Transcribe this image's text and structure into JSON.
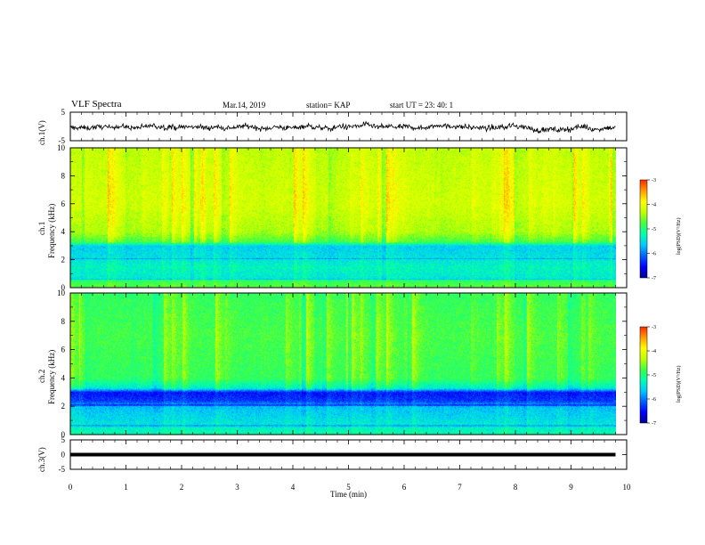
{
  "header": {
    "title": "VLF Spectra",
    "date": "Mar.14, 2019",
    "station": "station= KAP",
    "start": "start  UT =   23: 40: 1"
  },
  "labels": {
    "ch1_waveform": "ch.1(V)",
    "ch1_spec_line1": "ch.1",
    "ch1_spec_line2": "Frequency (kHz)",
    "ch2_spec_line1": "ch.2",
    "ch2_spec_line2": "Frequency (kHz)",
    "ch3_waveform": "ch.3(V)",
    "colorbar_title_1": "log(PSD)(V²/Hz)",
    "colorbar_title_2": "log(PSD)(V²/Hz)"
  },
  "chart_data": [
    {
      "type": "line",
      "name": "ch1-waveform",
      "ylabel": "ch.1(V)",
      "ylim": [
        -5,
        5
      ],
      "yticks": [
        "5",
        "-5"
      ],
      "xlim": [
        0,
        10
      ],
      "x_extent_min": 9.8,
      "level": -0.5,
      "amplitude": 2.0
    },
    {
      "type": "heatmap",
      "name": "ch1-spectrogram",
      "xlabel": "Time (min)",
      "ylabel": "Frequency (kHz)",
      "xlim": [
        0,
        10
      ],
      "ylim": [
        0,
        10
      ],
      "yticks": [
        "0",
        "2",
        "4",
        "6",
        "8",
        "10"
      ],
      "x_extent_min": 9.8,
      "profile": [
        {
          "f": 0.0,
          "v": -4.7
        },
        {
          "f": 0.5,
          "v": -4.9
        },
        {
          "f": 0.7,
          "v": -5.4
        },
        {
          "f": 1.5,
          "v": -5.3
        },
        {
          "f": 2.3,
          "v": -5.5
        },
        {
          "f": 3.0,
          "v": -5.6
        },
        {
          "f": 3.3,
          "v": -4.8
        },
        {
          "f": 4.0,
          "v": -4.4
        },
        {
          "f": 6.0,
          "v": -4.2
        },
        {
          "f": 10.0,
          "v": -4.3
        }
      ],
      "colorbar": {
        "label": "log(PSD)(V²/Hz)",
        "range": [
          -7,
          -3
        ],
        "ticks": [
          "-3",
          "-4",
          "-5",
          "-6",
          "-7"
        ]
      }
    },
    {
      "type": "heatmap",
      "name": "ch2-spectrogram",
      "xlabel": "Time (min)",
      "ylabel": "Frequency (kHz)",
      "xlim": [
        0,
        10
      ],
      "ylim": [
        0,
        10
      ],
      "yticks": [
        "0",
        "2",
        "4",
        "6",
        "8",
        "10"
      ],
      "x_extent_min": 9.8,
      "profile": [
        {
          "f": 0.0,
          "v": -5.2
        },
        {
          "f": 1.0,
          "v": -5.5
        },
        {
          "f": 2.0,
          "v": -5.7
        },
        {
          "f": 2.4,
          "v": -6.3
        },
        {
          "f": 3.0,
          "v": -6.5
        },
        {
          "f": 3.3,
          "v": -5.4
        },
        {
          "f": 4.0,
          "v": -4.9
        },
        {
          "f": 7.0,
          "v": -4.8
        },
        {
          "f": 10.0,
          "v": -4.9
        }
      ],
      "colorbar": {
        "label": "log(PSD)(V²/Hz)",
        "range": [
          -7,
          -3
        ],
        "ticks": [
          "-3",
          "-4",
          "-5",
          "-6",
          "-7"
        ]
      }
    },
    {
      "type": "line",
      "name": "ch3-waveform",
      "ylabel": "ch.3(V)",
      "ylim": [
        -5,
        5
      ],
      "yticks": [
        "5",
        "0",
        "-5"
      ],
      "xlim": [
        0,
        10
      ],
      "x_extent_min": 9.8,
      "level": 0,
      "amplitude": 0.15
    }
  ],
  "x_axis": {
    "label": "Time (min)",
    "ticks": [
      "0",
      "1",
      "2",
      "3",
      "4",
      "5",
      "6",
      "7",
      "8",
      "9",
      "10"
    ]
  },
  "colorscale": [
    "#000090",
    "#0000ff",
    "#0060ff",
    "#00c8ff",
    "#00ffb0",
    "#40ff40",
    "#c0ff00",
    "#ffff00",
    "#ff9a00",
    "#ff2800",
    "#ffffff"
  ]
}
